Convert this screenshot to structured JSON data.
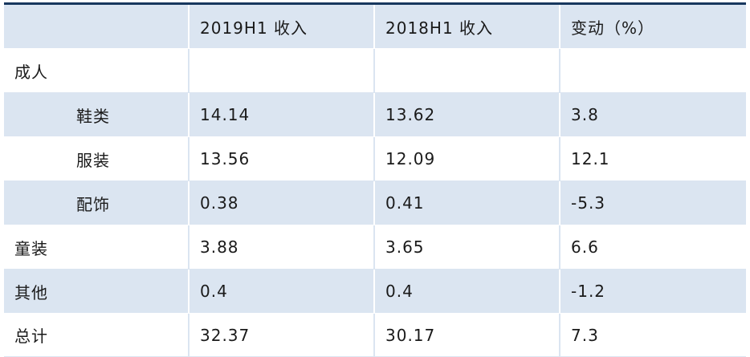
{
  "table": {
    "headers": [
      "",
      "2019H1 收入",
      "2018H1 收入",
      "变动（%）"
    ],
    "rows": [
      {
        "label": "成人",
        "c1": "",
        "c2": "",
        "c3": "",
        "indent": false
      },
      {
        "label": "鞋类",
        "c1": "14.14",
        "c2": "13.62",
        "c3": "3.8",
        "indent": true
      },
      {
        "label": "服装",
        "c1": "13.56",
        "c2": "12.09",
        "c3": "12.1",
        "indent": true
      },
      {
        "label": "配饰",
        "c1": "0.38",
        "c2": "0.41",
        "c3": "-5.3",
        "indent": true
      },
      {
        "label": "童装",
        "c1": "3.88",
        "c2": "3.65",
        "c3": "6.6",
        "indent": false
      },
      {
        "label": "其他",
        "c1": "0.4",
        "c2": "0.4",
        "c3": "-1.2",
        "indent": false
      },
      {
        "label": "总计",
        "c1": "32.37",
        "c2": "30.17",
        "c3": "7.3",
        "indent": false
      }
    ]
  }
}
